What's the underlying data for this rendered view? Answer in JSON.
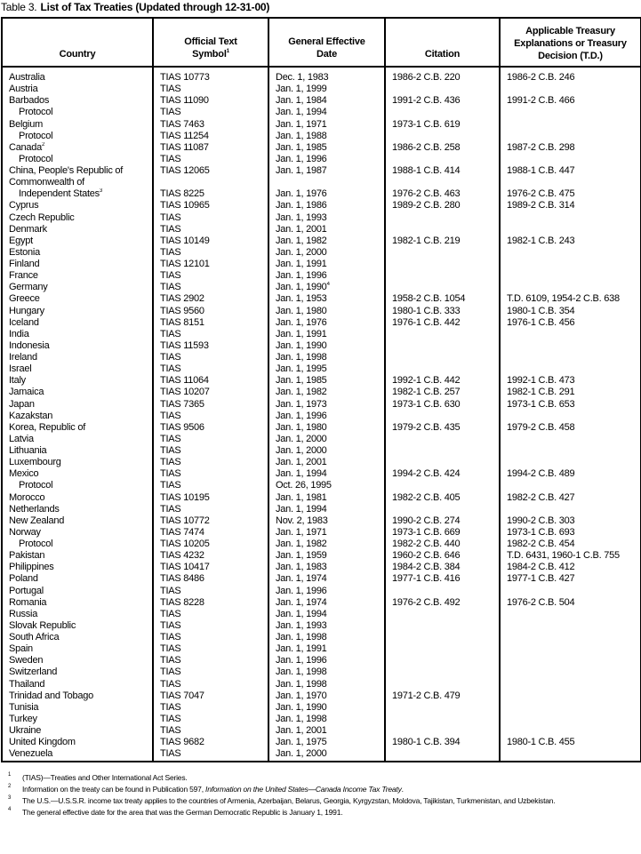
{
  "title": {
    "label": "Table 3.",
    "text": "List of Tax Treaties (Updated through 12-31-00)"
  },
  "columns": [
    {
      "label": "Country"
    },
    {
      "label": "Official Text Symbol",
      "sup": "1"
    },
    {
      "label": "General Effective Date"
    },
    {
      "label": "Citation"
    },
    {
      "label": "Applicable Treasury Explanations or Treasury Decision (T.D.)"
    }
  ],
  "rows": [
    {
      "country": "Australia",
      "symbol": "TIAS 10773",
      "date": "Dec. 1, 1983",
      "citation": "1986-2 C.B. 220",
      "td": "1986-2 C.B. 246"
    },
    {
      "country": "Austria",
      "symbol": "TIAS",
      "date": "Jan. 1, 1999"
    },
    {
      "country": "Barbados",
      "symbol": "TIAS 11090",
      "date": "Jan. 1, 1984",
      "citation": "1991-2 C.B. 436",
      "td": "1991-2 C.B. 466"
    },
    {
      "country": "Protocol",
      "indent": true,
      "symbol": "TIAS",
      "date": "Jan. 1, 1994"
    },
    {
      "country": "Belgium",
      "symbol": "TIAS 7463",
      "date": "Jan. 1, 1971",
      "citation": "1973-1 C.B. 619"
    },
    {
      "country": "Protocol",
      "indent": true,
      "symbol": "TIAS 11254",
      "date": "Jan. 1, 1988"
    },
    {
      "country": "Canada",
      "sup": "2",
      "symbol": "TIAS 11087",
      "date": "Jan. 1, 1985",
      "citation": "1986-2 C.B. 258",
      "td": "1987-2 C.B. 298"
    },
    {
      "country": "Protocol",
      "indent": true,
      "symbol": "TIAS",
      "date": "Jan. 1, 1996"
    },
    {
      "country": "China, People's Republic of",
      "symbol": "TIAS 12065",
      "date": "Jan. 1, 1987",
      "citation": "1988-1 C.B. 414",
      "td": "1988-1 C.B. 447"
    },
    {
      "country": "Commonwealth of"
    },
    {
      "country": "Independent States",
      "indent": true,
      "sup": "3",
      "symbol": "TIAS 8225",
      "date": "Jan. 1, 1976",
      "citation": "1976-2 C.B. 463",
      "td": "1976-2 C.B. 475"
    },
    {
      "country": "Cyprus",
      "symbol": "TIAS 10965",
      "date": "Jan. 1, 1986",
      "citation": "1989-2 C.B. 280",
      "td": "1989-2 C.B. 314"
    },
    {
      "country": "Czech Republic",
      "symbol": "TIAS",
      "date": "Jan. 1, 1993"
    },
    {
      "country": "Denmark",
      "symbol": "TIAS",
      "date": "Jan. 1, 2001"
    },
    {
      "country": "Egypt",
      "symbol": "TIAS 10149",
      "date": "Jan. 1, 1982",
      "citation": "1982-1 C.B. 219",
      "td": "1982-1 C.B. 243"
    },
    {
      "country": "Estonia",
      "symbol": "TIAS",
      "date": "Jan. 1, 2000"
    },
    {
      "country": "Finland",
      "symbol": "TIAS 12101",
      "date": "Jan. 1, 1991"
    },
    {
      "country": "France",
      "symbol": "TIAS",
      "date": "Jan. 1, 1996"
    },
    {
      "country": "Germany",
      "symbol": "TIAS",
      "date": "Jan. 1, 1990",
      "date_sup": "4"
    },
    {
      "country": "Greece",
      "symbol": "TIAS 2902",
      "date": "Jan. 1, 1953",
      "citation": "1958-2 C.B. 1054",
      "td": "T.D. 6109, 1954-2 C.B. 638"
    },
    {
      "country": "Hungary",
      "symbol": "TIAS 9560",
      "date": "Jan. 1, 1980",
      "citation": "1980-1 C.B. 333",
      "td": "1980-1 C.B. 354"
    },
    {
      "country": "Iceland",
      "symbol": "TIAS 8151",
      "date": "Jan. 1, 1976",
      "citation": "1976-1 C.B. 442",
      "td": "1976-1 C.B. 456"
    },
    {
      "country": "India",
      "symbol": "TIAS",
      "date": "Jan. 1, 1991"
    },
    {
      "country": "Indonesia",
      "symbol": "TIAS 11593",
      "date": "Jan. 1, 1990"
    },
    {
      "country": "Ireland",
      "symbol": "TIAS",
      "date": "Jan. 1, 1998"
    },
    {
      "country": "Israel",
      "symbol": "TIAS",
      "date": "Jan. 1, 1995"
    },
    {
      "country": "Italy",
      "symbol": "TIAS 11064",
      "date": "Jan. 1, 1985",
      "citation": "1992-1 C.B. 442",
      "td": "1992-1 C.B. 473"
    },
    {
      "country": "Jamaica",
      "symbol": "TIAS 10207",
      "date": "Jan. 1, 1982",
      "citation": "1982-1 C.B. 257",
      "td": "1982-1 C.B. 291"
    },
    {
      "country": "Japan",
      "symbol": "TIAS 7365",
      "date": "Jan. 1, 1973",
      "citation": "1973-1 C.B. 630",
      "td": "1973-1 C.B. 653"
    },
    {
      "country": "Kazakstan",
      "symbol": "TIAS",
      "date": "Jan. 1, 1996"
    },
    {
      "country": "Korea, Republic of",
      "symbol": "TIAS 9506",
      "date": "Jan. 1, 1980",
      "citation": "1979-2 C.B. 435",
      "td": "1979-2 C.B. 458"
    },
    {
      "country": "Latvia",
      "symbol": "TIAS",
      "date": "Jan. 1, 2000"
    },
    {
      "country": "Lithuania",
      "symbol": "TIAS",
      "date": "Jan. 1, 2000"
    },
    {
      "country": "Luxembourg",
      "symbol": "TIAS",
      "date": "Jan. 1, 2001"
    },
    {
      "country": "Mexico",
      "symbol": "TIAS",
      "date": "Jan. 1, 1994",
      "citation": "1994-2 C.B. 424",
      "td": "1994-2 C.B. 489"
    },
    {
      "country": "Protocol",
      "indent": true,
      "symbol": "TIAS",
      "date": "Oct. 26, 1995"
    },
    {
      "country": "Morocco",
      "symbol": "TIAS 10195",
      "date": "Jan. 1, 1981",
      "citation": "1982-2 C.B. 405",
      "td": "1982-2 C.B. 427"
    },
    {
      "country": "Netherlands",
      "symbol": "TIAS",
      "date": "Jan. 1, 1994"
    },
    {
      "country": "New Zealand",
      "symbol": "TIAS 10772",
      "date": "Nov. 2, 1983",
      "citation": "1990-2 C.B. 274",
      "td": "1990-2 C.B. 303"
    },
    {
      "country": "Norway",
      "symbol": "TIAS 7474",
      "date": "Jan. 1, 1971",
      "citation": "1973-1 C.B. 669",
      "td": "1973-1 C.B. 693"
    },
    {
      "country": "Protocol",
      "indent": true,
      "symbol": "TIAS 10205",
      "date": "Jan. 1, 1982",
      "citation": "1982-2 C.B. 440",
      "td": "1982-2 C.B. 454"
    },
    {
      "country": "Pakistan",
      "symbol": "TIAS 4232",
      "date": "Jan. 1, 1959",
      "citation": "1960-2 C.B. 646",
      "td": "T.D. 6431, 1960-1 C.B. 755"
    },
    {
      "country": "Philippines",
      "symbol": "TIAS 10417",
      "date": "Jan. 1, 1983",
      "citation": "1984-2 C.B. 384",
      "td": "1984-2 C.B. 412"
    },
    {
      "country": "Poland",
      "symbol": "TIAS 8486",
      "date": "Jan. 1, 1974",
      "citation": "1977-1 C.B. 416",
      "td": "1977-1 C.B. 427"
    },
    {
      "country": "Portugal",
      "symbol": "TIAS",
      "date": "Jan. 1, 1996"
    },
    {
      "country": "Romania",
      "symbol": "TIAS 8228",
      "date": "Jan. 1, 1974",
      "citation": "1976-2 C.B. 492",
      "td": "1976-2 C.B. 504"
    },
    {
      "country": "Russia",
      "symbol": "TIAS",
      "date": "Jan. 1, 1994"
    },
    {
      "country": "Slovak Republic",
      "symbol": "TIAS",
      "date": "Jan. 1, 1993"
    },
    {
      "country": "South Africa",
      "symbol": "TIAS",
      "date": "Jan. 1, 1998"
    },
    {
      "country": "Spain",
      "symbol": "TIAS",
      "date": "Jan. 1, 1991"
    },
    {
      "country": "Sweden",
      "symbol": "TIAS",
      "date": "Jan. 1, 1996"
    },
    {
      "country": "Switzerland",
      "symbol": "TIAS",
      "date": "Jan. 1, 1998"
    },
    {
      "country": "Thailand",
      "symbol": "TIAS",
      "date": "Jan. 1, 1998"
    },
    {
      "country": "Trinidad and Tobago",
      "symbol": "TIAS 7047",
      "date": "Jan. 1, 1970",
      "citation": "1971-2 C.B. 479"
    },
    {
      "country": "Tunisia",
      "symbol": "TIAS",
      "date": "Jan. 1, 1990"
    },
    {
      "country": "Turkey",
      "symbol": "TIAS",
      "date": "Jan. 1, 1998"
    },
    {
      "country": "Ukraine",
      "symbol": "TIAS",
      "date": "Jan. 1, 2001"
    },
    {
      "country": "United Kingdom",
      "symbol": "TIAS 9682",
      "date": "Jan. 1, 1975",
      "citation": "1980-1 C.B. 394",
      "td": "1980-1 C.B. 455"
    },
    {
      "country": "Venezuela",
      "symbol": "TIAS",
      "date": "Jan. 1, 2000"
    }
  ],
  "footnotes": [
    {
      "num": "1",
      "text": "(TIAS)—Treaties and Other International Act Series."
    },
    {
      "num": "2",
      "text": "Information on the treaty can be found in Publication 597, ",
      "italic": "Information on the United States—Canada Income Tax Treaty",
      "after": "."
    },
    {
      "num": "3",
      "text": "The U.S.—U.S.S.R. income tax treaty applies to the countries of Armenia, Azerbaijan, Belarus, Georgia, Kyrgyzstan, Moldova, Tajikistan, Turkmenistan, and Uzbekistan."
    },
    {
      "num": "4",
      "text": "The general effective date for the area that was the German Democratic Republic is January 1, 1991."
    }
  ]
}
